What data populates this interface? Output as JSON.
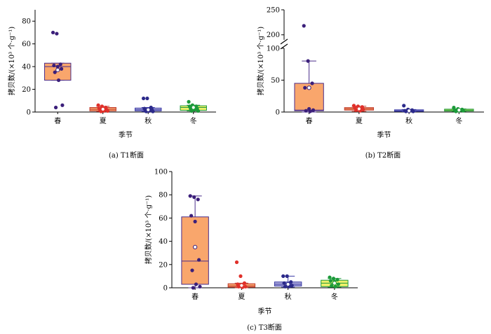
{
  "colors": {
    "spring_fill": "#f9a66c",
    "spring_edge": "#4a2c8a",
    "spring_point": "#3b1f7a",
    "summer_fill": "#f4a26c",
    "summer_edge": "#c0392b",
    "summer_point": "#e0302a",
    "autumn_fill": "#a9a6d9",
    "autumn_edge": "#3a3aa6",
    "autumn_point": "#2c2a8a",
    "winter_fill": "#eef06a",
    "winter_edge": "#1f9a3a",
    "winter_point": "#1c9a3a"
  },
  "chart_data": [
    {
      "type": "box",
      "caption": "(a) T1断面",
      "xlabel": "季节",
      "ylabel": "拷贝数/(×10³ 个·g⁻¹)",
      "categories": [
        "春",
        "夏",
        "秋",
        "冬"
      ],
      "ylim": [
        0,
        90
      ],
      "yticks": [
        0,
        20,
        40,
        60,
        80
      ],
      "boxes": [
        {
          "q1": 28,
          "median": 40,
          "q3": 43,
          "whisker_low": 28,
          "whisker_high": 43,
          "mean": 37,
          "points": [
            70,
            69,
            42,
            41,
            40,
            38,
            35,
            28,
            6,
            4
          ]
        },
        {
          "q1": 1,
          "median": 2.5,
          "q3": 4,
          "whisker_low": 0.5,
          "whisker_high": 5,
          "mean": 2.5,
          "points": [
            6,
            5,
            4,
            3,
            3,
            2,
            2,
            1,
            1,
            0.5
          ]
        },
        {
          "q1": 1,
          "median": 2,
          "q3": 3.5,
          "whisker_low": 0.5,
          "whisker_high": 4,
          "mean": 2,
          "points": [
            12,
            12,
            4,
            3,
            2,
            2,
            1,
            1,
            0.5,
            0.5
          ]
        },
        {
          "q1": 1.5,
          "median": 4,
          "q3": 5.5,
          "whisker_low": 1,
          "whisker_high": 6,
          "mean": 4,
          "points": [
            9,
            6,
            5,
            5,
            4,
            3,
            3,
            2,
            1,
            1
          ]
        }
      ]
    },
    {
      "type": "box",
      "caption": "(b) T2断面",
      "xlabel": "季节",
      "ylabel": "拷贝数/(×10³ 个·g⁻¹)",
      "categories": [
        "春",
        "夏",
        "秋",
        "冬"
      ],
      "ylim": [
        0,
        250
      ],
      "yticks": [
        0,
        50,
        100,
        200,
        250
      ],
      "axis_break": [
        100,
        190
      ],
      "boxes": [
        {
          "q1": 2,
          "median": 3,
          "q3": 45,
          "whisker_low": 0,
          "whisker_high": 80,
          "mean": 38,
          "points": [
            218,
            80,
            45,
            38,
            5,
            3,
            2,
            1
          ]
        },
        {
          "q1": 3,
          "median": 5,
          "q3": 7,
          "whisker_low": 1,
          "whisker_high": 9,
          "mean": 5,
          "points": [
            10,
            9,
            8,
            7,
            5,
            4,
            3,
            2
          ]
        },
        {
          "q1": 1,
          "median": 2,
          "q3": 3.5,
          "whisker_low": 0.5,
          "whisker_high": 4,
          "mean": 2,
          "points": [
            10,
            4,
            3,
            2,
            2,
            1,
            1
          ]
        },
        {
          "q1": 1.5,
          "median": 3,
          "q3": 4.5,
          "whisker_low": 1,
          "whisker_high": 5,
          "mean": 3,
          "points": [
            7,
            5,
            4,
            3,
            2,
            2,
            1
          ]
        }
      ]
    },
    {
      "type": "box",
      "caption": "(c) T3断面",
      "xlabel": "季节",
      "ylabel": "拷贝数/(×10³ 个·g⁻¹)",
      "categories": [
        "春",
        "夏",
        "秋",
        "冬"
      ],
      "ylim": [
        0,
        100
      ],
      "yticks": [
        0,
        20,
        40,
        60,
        80,
        100
      ],
      "boxes": [
        {
          "q1": 3,
          "median": 23,
          "q3": 61,
          "whisker_low": 0,
          "whisker_high": 79,
          "mean": 35,
          "points": [
            79,
            78,
            76,
            62,
            57,
            24,
            15,
            3,
            1,
            0
          ]
        },
        {
          "q1": 0.5,
          "median": 1.5,
          "q3": 3.5,
          "whisker_low": 0,
          "whisker_high": 4,
          "mean": 2,
          "points": [
            22,
            10,
            4,
            3,
            2,
            1,
            1,
            0.5
          ]
        },
        {
          "q1": 1.5,
          "median": 3,
          "q3": 5,
          "whisker_low": 0.5,
          "whisker_high": 10,
          "mean": 3,
          "points": [
            10,
            10,
            5,
            4,
            3,
            2,
            1,
            1
          ]
        },
        {
          "q1": 1,
          "median": 4,
          "q3": 6.5,
          "whisker_low": 0.5,
          "whisker_high": 8,
          "mean": 4,
          "points": [
            9,
            8,
            7,
            6,
            5,
            3,
            2,
            1
          ]
        }
      ]
    }
  ]
}
